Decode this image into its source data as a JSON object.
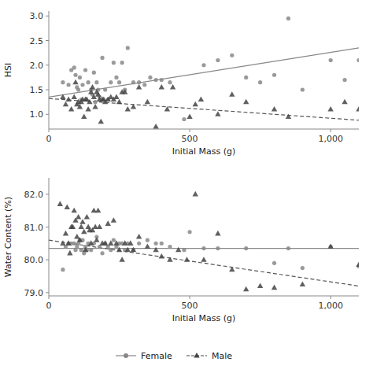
{
  "chart_data": [
    {
      "type": "scatter",
      "x_label": "Initial Mass (g)",
      "y_label": "HSI",
      "xlim": [
        0,
        1100
      ],
      "xticks": [
        0,
        500,
        {
          "value": 1000,
          "label": "1,000"
        }
      ],
      "ylim": [
        0.7,
        3.1
      ],
      "yticks": [
        {
          "value": 1.0,
          "label": "1.0"
        },
        1.5,
        {
          "value": 2.0,
          "label": "2.0"
        },
        2.5,
        {
          "value": 3.0,
          "label": "3.0"
        }
      ],
      "grid": false,
      "series": [
        {
          "name": "Female",
          "type": "scatter",
          "marker": "circle",
          "color": "#888888",
          "x": [
            50,
            70,
            80,
            90,
            95,
            100,
            105,
            110,
            115,
            120,
            130,
            140,
            150,
            155,
            160,
            165,
            170,
            175,
            180,
            190,
            200,
            210,
            220,
            230,
            240,
            250,
            260,
            270,
            280,
            300,
            320,
            340,
            360,
            380,
            400,
            430,
            480,
            550,
            600,
            650,
            700,
            750,
            800,
            850,
            900,
            1000,
            1050,
            1100
          ],
          "values": [
            1.65,
            1.6,
            1.9,
            1.95,
            1.8,
            1.55,
            1.5,
            1.75,
            1.3,
            1.6,
            1.9,
            1.65,
            1.5,
            1.4,
            1.85,
            1.25,
            1.65,
            1.5,
            1.35,
            2.15,
            1.5,
            1.3,
            1.65,
            2.05,
            1.75,
            1.65,
            2.05,
            1.5,
            2.35,
            1.65,
            1.65,
            1.6,
            1.75,
            1.7,
            1.7,
            1.65,
            0.9,
            2.0,
            2.1,
            2.2,
            1.75,
            1.65,
            1.8,
            2.95,
            1.5,
            2.1,
            1.7,
            2.1
          ]
        },
        {
          "name": "Male",
          "type": "scatter",
          "marker": "triangle",
          "color": "#444444",
          "x": [
            50,
            60,
            70,
            80,
            90,
            95,
            100,
            105,
            110,
            115,
            120,
            125,
            130,
            135,
            140,
            145,
            150,
            155,
            160,
            165,
            170,
            175,
            180,
            185,
            190,
            195,
            200,
            210,
            220,
            230,
            240,
            250,
            260,
            270,
            280,
            300,
            320,
            350,
            380,
            400,
            420,
            440,
            500,
            520,
            540,
            600,
            650,
            700,
            800,
            850,
            1000,
            1050,
            1100
          ],
          "values": [
            1.35,
            1.2,
            1.3,
            1.1,
            1.35,
            1.65,
            1.2,
            1.25,
            1.15,
            1.25,
            1.3,
            0.95,
            1.3,
            1.3,
            1.1,
            1.25,
            1.45,
            1.55,
            1.35,
            1.15,
            1.45,
            1.4,
            1.3,
            0.85,
            1.3,
            1.3,
            1.25,
            1.3,
            1.35,
            1.3,
            1.35,
            1.25,
            1.45,
            1.45,
            1.1,
            1.15,
            1.55,
            1.25,
            0.75,
            1.55,
            1.1,
            1.55,
            0.95,
            1.2,
            1.3,
            1.0,
            1.4,
            1.25,
            1.1,
            0.95,
            1.1,
            1.25,
            1.1
          ]
        },
        {
          "type": "line",
          "line_style": "solid",
          "color": "#888888",
          "x": [
            0,
            1100
          ],
          "values": [
            1.35,
            2.35
          ]
        },
        {
          "type": "line",
          "line_style": "dashed",
          "color": "#555555",
          "x": [
            0,
            1100
          ],
          "values": [
            1.32,
            0.88
          ]
        }
      ]
    },
    {
      "type": "scatter",
      "x_label": "Initial Mass (g)",
      "y_label": "Water Content (%)",
      "xlim": [
        0,
        1100
      ],
      "xticks": [
        0,
        500,
        {
          "value": 1000,
          "label": "1,000"
        }
      ],
      "ylim": [
        78.9,
        82.5
      ],
      "yticks": [
        {
          "value": 79.0,
          "label": "79.0"
        },
        {
          "value": 80.0,
          "label": "80.0"
        },
        {
          "value": 81.0,
          "label": "81.0"
        },
        {
          "value": 82.0,
          "label": "82.0"
        }
      ],
      "grid": false,
      "series": [
        {
          "type": "scatter",
          "marker": "circle",
          "color": "#888888",
          "x": [
            50,
            60,
            70,
            80,
            90,
            95,
            100,
            105,
            110,
            115,
            120,
            125,
            130,
            135,
            140,
            150,
            160,
            170,
            180,
            190,
            200,
            210,
            220,
            230,
            240,
            250,
            260,
            270,
            280,
            300,
            320,
            350,
            380,
            400,
            430,
            480,
            500,
            550,
            600,
            700,
            800,
            850,
            900,
            1000,
            1100
          ],
          "values": [
            79.7,
            80.4,
            80.5,
            80.5,
            80.5,
            80.3,
            80.4,
            80.5,
            80.6,
            80.3,
            80.6,
            80.2,
            80.4,
            80.3,
            80.5,
            80.3,
            80.5,
            80.7,
            80.4,
            80.2,
            80.5,
            80.4,
            80.3,
            80.6,
            80.4,
            80.5,
            80.5,
            80.3,
            80.5,
            80.3,
            80.5,
            80.6,
            80.5,
            80.5,
            80.4,
            80.3,
            80.85,
            80.35,
            80.35,
            80.35,
            79.9,
            80.35,
            79.75,
            80.4,
            79.8
          ]
        },
        {
          "type": "scatter",
          "marker": "triangle",
          "color": "#444444",
          "x": [
            40,
            50,
            60,
            65,
            70,
            75,
            80,
            85,
            90,
            95,
            100,
            105,
            110,
            115,
            120,
            125,
            130,
            135,
            140,
            145,
            150,
            155,
            160,
            165,
            170,
            175,
            180,
            190,
            200,
            210,
            220,
            230,
            240,
            250,
            260,
            270,
            280,
            290,
            300,
            320,
            350,
            380,
            400,
            430,
            460,
            490,
            520,
            550,
            600,
            650,
            700,
            750,
            800,
            900,
            1000,
            1100
          ],
          "values": [
            81.7,
            80.5,
            80.8,
            81.6,
            80.5,
            80.2,
            81.0,
            81.0,
            81.5,
            81.2,
            80.7,
            81.3,
            80.6,
            81.0,
            81.15,
            80.85,
            80.3,
            81.3,
            81.0,
            80.9,
            80.5,
            80.9,
            81.5,
            81.0,
            80.6,
            81.5,
            81.0,
            80.5,
            80.5,
            81.1,
            80.5,
            81.2,
            80.5,
            80.3,
            80.0,
            80.5,
            80.3,
            80.5,
            80.3,
            80.7,
            80.4,
            80.3,
            80.1,
            80.0,
            80.3,
            80.0,
            82.0,
            80.0,
            80.8,
            79.7,
            79.1,
            79.2,
            79.15,
            79.25,
            80.4,
            79.85
          ]
        },
        {
          "type": "line",
          "line_style": "solid",
          "color": "#888888",
          "x": [
            0,
            1100
          ],
          "values": [
            80.35,
            80.35
          ]
        },
        {
          "type": "line",
          "line_style": "dashed",
          "color": "#555555",
          "x": [
            0,
            1100
          ],
          "values": [
            80.6,
            79.2
          ]
        }
      ]
    }
  ]
}
